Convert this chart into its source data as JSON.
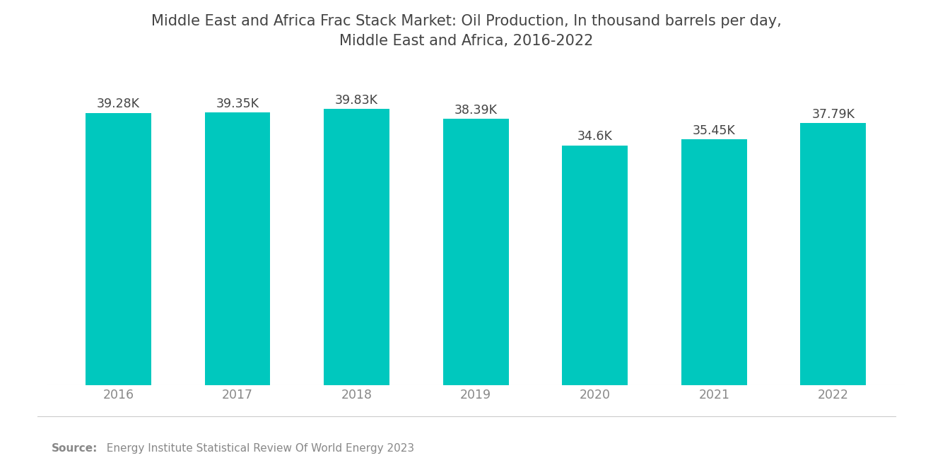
{
  "title": "Middle East and Africa Frac Stack Market: Oil Production, In thousand barrels per day,\nMiddle East and Africa, 2016-2022",
  "years": [
    "2016",
    "2017",
    "2018",
    "2019",
    "2020",
    "2021",
    "2022"
  ],
  "values": [
    39280,
    39350,
    39830,
    38390,
    34600,
    35450,
    37790
  ],
  "labels": [
    "39.28K",
    "39.35K",
    "39.83K",
    "38.39K",
    "34.6K",
    "35.45K",
    "37.79K"
  ],
  "bar_color": "#00C8BE",
  "background_color": "#ffffff",
  "title_color": "#444444",
  "label_color": "#444444",
  "tick_color": "#888888",
  "source_bold": "Source:",
  "source_text": "  Energy Institute Statistical Review Of World Energy 2023",
  "ylim_min": 0,
  "ylim_max": 42000,
  "title_fontsize": 15,
  "label_fontsize": 12.5,
  "tick_fontsize": 12.5,
  "source_fontsize": 11,
  "bar_width": 0.55
}
